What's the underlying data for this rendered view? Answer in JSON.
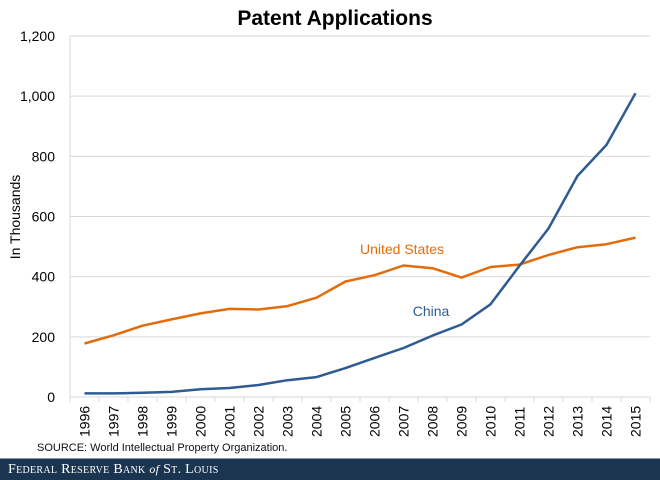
{
  "chart_data": {
    "type": "line",
    "title": "Patent Applications",
    "xlabel": "",
    "ylabel": "In Thousands",
    "x": [
      "1996",
      "1997",
      "1998",
      "1999",
      "2000",
      "2001",
      "2002",
      "2003",
      "2004",
      "2005",
      "2006",
      "2007",
      "2008",
      "2009",
      "2010",
      "2011",
      "2012",
      "2013",
      "2014",
      "2015"
    ],
    "ylim": [
      0,
      1200
    ],
    "yticks": [
      0,
      200,
      400,
      600,
      800,
      1000,
      1200
    ],
    "ytick_labels": [
      "0",
      "200",
      "400",
      "600",
      "800",
      "1,000",
      "1,200"
    ],
    "grid": true,
    "legend": "inline-labels",
    "series": [
      {
        "name": "United States",
        "color": "#e36c0a",
        "values": [
          178,
          205,
          237,
          258,
          278,
          293,
          291,
          302,
          330,
          384,
          405,
          437,
          428,
          397,
          432,
          440,
          472,
          498,
          508,
          530
        ]
      },
      {
        "name": "China",
        "color": "#2e5b91",
        "values": [
          12,
          12,
          14,
          17,
          26,
          30,
          40,
          56,
          66,
          96,
          130,
          163,
          204,
          241,
          308,
          436,
          560,
          735,
          838,
          1010
        ]
      }
    ]
  },
  "source": "SOURCE: World Intellectual Property Organization.",
  "footer": {
    "brand_before": "Federal Reserve Bank ",
    "brand_of": "of",
    "brand_after": " St. Louis"
  }
}
